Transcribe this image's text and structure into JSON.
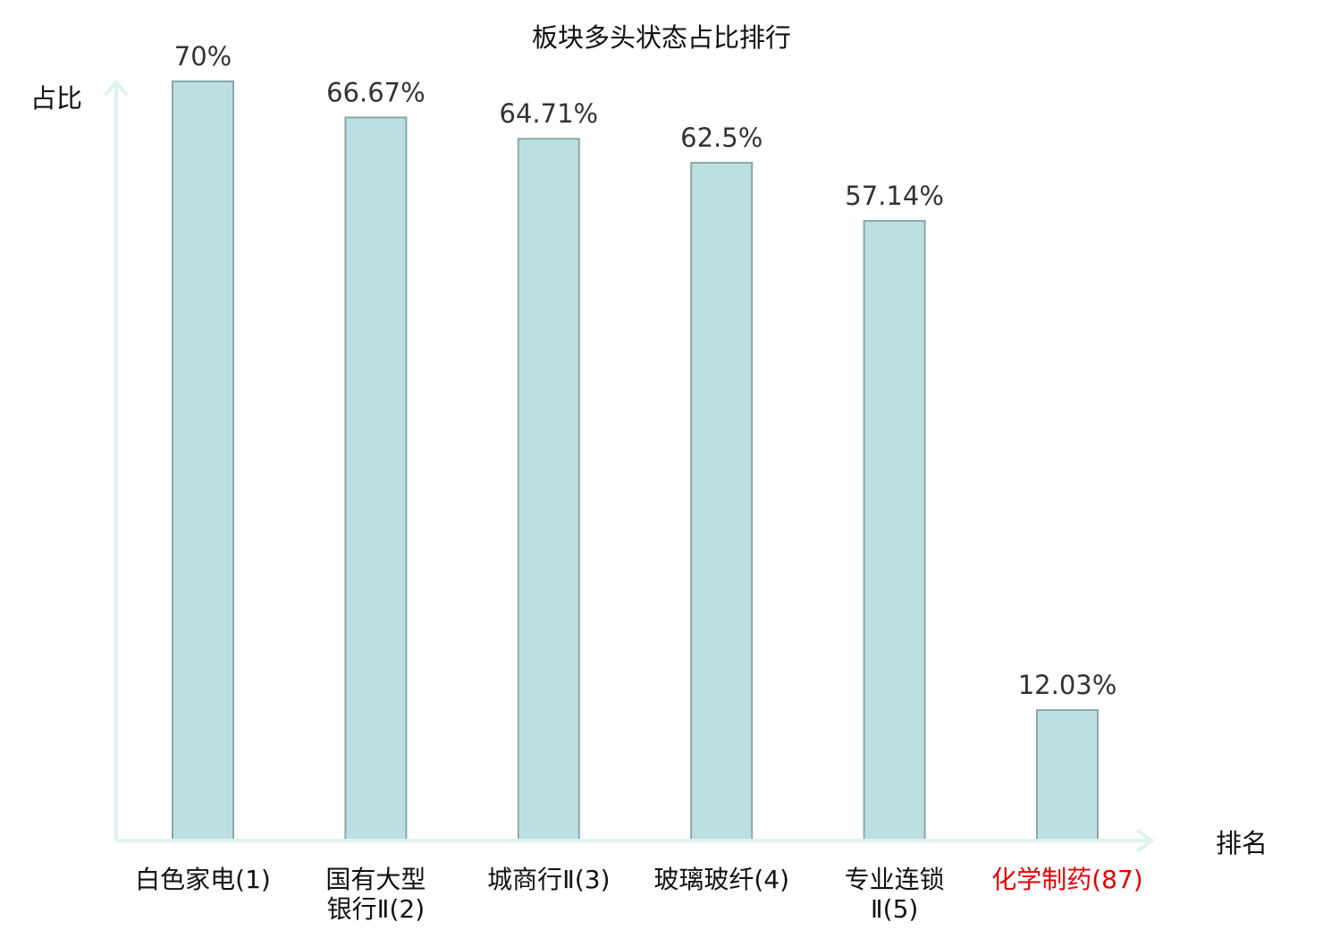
{
  "chart_data": {
    "type": "bar",
    "title": "板块多头状态占比排行",
    "ylabel": "占比",
    "xlabel": "排名",
    "ylim": [
      0,
      70
    ],
    "grid": false,
    "categories": [
      {
        "lines": [
          "白色家电(1)"
        ],
        "highlight": false
      },
      {
        "lines": [
          "国有大型",
          "银行Ⅱ(2)"
        ],
        "highlight": false
      },
      {
        "lines": [
          "城商行Ⅱ(3)"
        ],
        "highlight": false
      },
      {
        "lines": [
          "玻璃玻纤(4)"
        ],
        "highlight": false
      },
      {
        "lines": [
          "专业连锁",
          "Ⅱ(5)"
        ],
        "highlight": false
      },
      {
        "lines": [
          "化学制药(87)"
        ],
        "highlight": true
      }
    ],
    "values": [
      70,
      66.67,
      64.71,
      62.5,
      57.14,
      12.03
    ],
    "value_labels": [
      "70%",
      "66.67%",
      "64.71%",
      "62.5%",
      "57.14%",
      "12.03%"
    ]
  },
  "colors": {
    "bar_fill": "#bce0e2",
    "bar_stroke": "#8aa8aa",
    "axis": "#dff2ef",
    "text": "#111111",
    "value_text": "#333333",
    "highlight": "#e60000"
  }
}
